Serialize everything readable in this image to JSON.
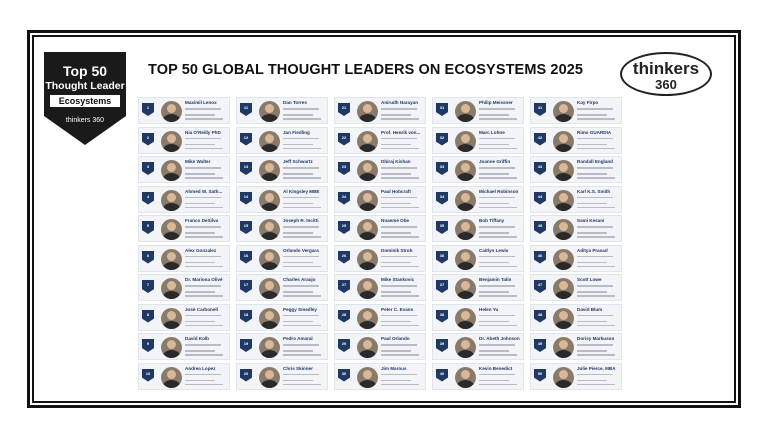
{
  "badge": {
    "top": "Top 50",
    "sub": "Thought Leader",
    "band": "Ecosystems",
    "brand": "thinkers 360"
  },
  "title": "TOP 50 GLOBAL THOUGHT LEADERS ON ECOSYSTEMS 2025",
  "logo": {
    "word": "thinkers",
    "num": "360"
  },
  "colors": {
    "navy": "#1f3864",
    "frame": "#111111"
  },
  "leaders": [
    {
      "rank": "1",
      "name": "Maximil Lenox"
    },
    {
      "rank": "2",
      "name": "Nia O'Reilly PhD"
    },
    {
      "rank": "3",
      "name": "Mike Walter"
    },
    {
      "rank": "4",
      "name": "Ahmed W. Sath..."
    },
    {
      "rank": "5",
      "name": "Franco DeSilva"
    },
    {
      "rank": "6",
      "name": "Alex Gonzalez"
    },
    {
      "rank": "7",
      "name": "Dr. Mariona Olivé"
    },
    {
      "rank": "8",
      "name": "Josè Carbonell"
    },
    {
      "rank": "9",
      "name": "David Kolb"
    },
    {
      "rank": "10",
      "name": "Andrea Lopez"
    },
    {
      "rank": "11",
      "name": "Dan Torres"
    },
    {
      "rank": "12",
      "name": "Jan Fiedling"
    },
    {
      "rank": "13",
      "name": "Jeff Schwartz"
    },
    {
      "rank": "14",
      "name": "Al Kingsley MBE"
    },
    {
      "rank": "15",
      "name": "Joseph R. Incitti"
    },
    {
      "rank": "16",
      "name": "Orlando Vergara"
    },
    {
      "rank": "17",
      "name": "Charles Araujo"
    },
    {
      "rank": "18",
      "name": "Peggy Smedley"
    },
    {
      "rank": "19",
      "name": "Pedro Amaral"
    },
    {
      "rank": "20",
      "name": "Chris Skinner"
    },
    {
      "rank": "21",
      "name": "Anirudh Narayan"
    },
    {
      "rank": "22",
      "name": "Prof. Henrik von..."
    },
    {
      "rank": "23",
      "name": "Dhiraj Kishan"
    },
    {
      "rank": "24",
      "name": "Paul Hobcraft"
    },
    {
      "rank": "25",
      "name": "Nnaeme Obe"
    },
    {
      "rank": "26",
      "name": "Dominik Stroh"
    },
    {
      "rank": "27",
      "name": "Mike Stankovic"
    },
    {
      "rank": "28",
      "name": "Peter C. Evans"
    },
    {
      "rank": "29",
      "name": "Paul Orlando"
    },
    {
      "rank": "30",
      "name": "Jim Marous"
    },
    {
      "rank": "31",
      "name": "Philip Meissner"
    },
    {
      "rank": "32",
      "name": "Marc Lohne"
    },
    {
      "rank": "33",
      "name": "Joanne Griffin"
    },
    {
      "rank": "34",
      "name": "Michael Robinson"
    },
    {
      "rank": "35",
      "name": "Bob Tiffany"
    },
    {
      "rank": "36",
      "name": "Caitlyn Lewis"
    },
    {
      "rank": "37",
      "name": "Benjamin Talin"
    },
    {
      "rank": "38",
      "name": "Helen Yu"
    },
    {
      "rank": "39",
      "name": "Dr. Abeth Johnson"
    },
    {
      "rank": "40",
      "name": "Kevin Benedict"
    },
    {
      "rank": "41",
      "name": "Kay Firpo"
    },
    {
      "rank": "42",
      "name": "Rimo GUARDIA"
    },
    {
      "rank": "43",
      "name": "Randall England"
    },
    {
      "rank": "44",
      "name": "Karl K.S. Smith"
    },
    {
      "rank": "45",
      "name": "Sami Kesani"
    },
    {
      "rank": "46",
      "name": "Aditya Prasad"
    },
    {
      "rank": "47",
      "name": "Scott Lowe"
    },
    {
      "rank": "48",
      "name": "David Blum"
    },
    {
      "rank": "49",
      "name": "Dorisy Markuson"
    },
    {
      "rank": "50",
      "name": "Julie Pierce, MBA"
    }
  ]
}
